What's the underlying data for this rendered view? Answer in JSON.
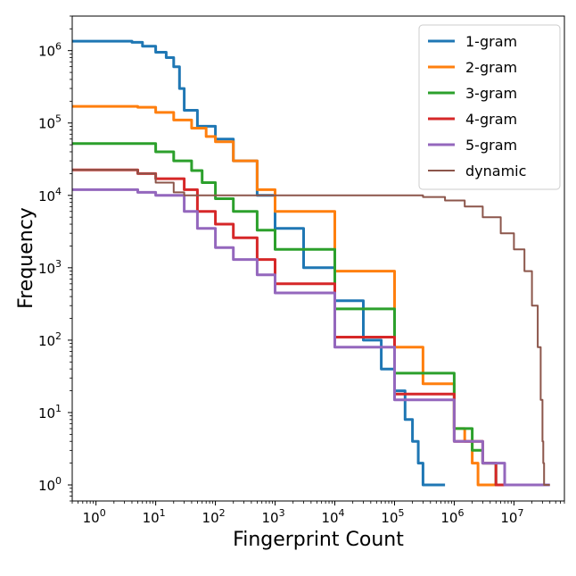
{
  "chart_data": {
    "type": "line",
    "xscale": "log",
    "yscale": "log",
    "xlabel": "Fingerprint Count",
    "ylabel": "Frequency",
    "xlim": [
      0.4,
      70000000
    ],
    "ylim": [
      0.6,
      3000000
    ],
    "grid": false,
    "legend_position": "top-right",
    "x_ticks": [
      {
        "value": 1,
        "base": "10",
        "exp": "0"
      },
      {
        "value": 10,
        "base": "10",
        "exp": "1"
      },
      {
        "value": 100,
        "base": "10",
        "exp": "2"
      },
      {
        "value": 1000,
        "base": "10",
        "exp": "3"
      },
      {
        "value": 10000,
        "base": "10",
        "exp": "4"
      },
      {
        "value": 100000,
        "base": "10",
        "exp": "5"
      },
      {
        "value": 1000000,
        "base": "10",
        "exp": "6"
      },
      {
        "value": 10000000,
        "base": "10",
        "exp": "7"
      }
    ],
    "y_ticks": [
      {
        "value": 1,
        "base": "10",
        "exp": "0"
      },
      {
        "value": 10,
        "base": "10",
        "exp": "1"
      },
      {
        "value": 100,
        "base": "10",
        "exp": "2"
      },
      {
        "value": 1000,
        "base": "10",
        "exp": "3"
      },
      {
        "value": 10000,
        "base": "10",
        "exp": "4"
      },
      {
        "value": 100000,
        "base": "10",
        "exp": "5"
      },
      {
        "value": 1000000,
        "base": "10",
        "exp": "6"
      }
    ],
    "series": [
      {
        "name": "1-gram",
        "color": "#1f77b4",
        "width": 3,
        "points": [
          [
            0.4,
            1350000
          ],
          [
            1,
            1350000
          ],
          [
            3,
            1350000
          ],
          [
            4,
            1300000
          ],
          [
            6,
            1150000
          ],
          [
            10,
            950000
          ],
          [
            15,
            800000
          ],
          [
            20,
            600000
          ],
          [
            25,
            300000
          ],
          [
            30,
            150000
          ],
          [
            50,
            90000
          ],
          [
            100,
            60000
          ],
          [
            200,
            30000
          ],
          [
            500,
            10000
          ],
          [
            1000,
            3500
          ],
          [
            3000,
            1000
          ],
          [
            10000,
            350
          ],
          [
            30000,
            100
          ],
          [
            60000,
            40
          ],
          [
            100000,
            20
          ],
          [
            150000,
            8
          ],
          [
            200000,
            4
          ],
          [
            250000,
            2
          ],
          [
            300000,
            1
          ],
          [
            700000,
            1
          ]
        ]
      },
      {
        "name": "2-gram",
        "color": "#ff7f0e",
        "width": 3,
        "points": [
          [
            0.4,
            170000
          ],
          [
            1,
            170000
          ],
          [
            5,
            165000
          ],
          [
            10,
            140000
          ],
          [
            20,
            110000
          ],
          [
            40,
            85000
          ],
          [
            70,
            65000
          ],
          [
            100,
            55000
          ],
          [
            200,
            30000
          ],
          [
            500,
            12000
          ],
          [
            1000,
            6000
          ],
          [
            10000,
            900
          ],
          [
            100000,
            80
          ],
          [
            300000,
            25
          ],
          [
            1000000,
            6
          ],
          [
            1500000,
            4
          ],
          [
            2000000,
            2
          ],
          [
            2500000,
            1
          ],
          [
            4000000,
            1
          ],
          [
            5500000,
            1
          ]
        ]
      },
      {
        "name": "3-gram",
        "color": "#2ca02c",
        "width": 3,
        "points": [
          [
            0.4,
            52000
          ],
          [
            1,
            52000
          ],
          [
            5,
            52000
          ],
          [
            10,
            40000
          ],
          [
            20,
            30000
          ],
          [
            40,
            22000
          ],
          [
            60,
            15000
          ],
          [
            100,
            9000
          ],
          [
            200,
            6000
          ],
          [
            500,
            3300
          ],
          [
            1000,
            1800
          ],
          [
            10000,
            270
          ],
          [
            100000,
            35
          ],
          [
            1000000,
            6
          ],
          [
            2000000,
            3
          ],
          [
            3000000,
            2
          ],
          [
            5000000,
            1
          ],
          [
            6000000,
            1
          ]
        ]
      },
      {
        "name": "4-gram",
        "color": "#d62728",
        "width": 3,
        "points": [
          [
            0.4,
            22500
          ],
          [
            1,
            22500
          ],
          [
            3,
            22500
          ],
          [
            5,
            20000
          ],
          [
            10,
            17000
          ],
          [
            30,
            12000
          ],
          [
            50,
            6000
          ],
          [
            100,
            4000
          ],
          [
            200,
            2600
          ],
          [
            500,
            1300
          ],
          [
            1000,
            600
          ],
          [
            10000,
            110
          ],
          [
            100000,
            18
          ],
          [
            1000000,
            4
          ],
          [
            3000000,
            2
          ],
          [
            5000000,
            1
          ],
          [
            7000000,
            1
          ]
        ]
      },
      {
        "name": "5-gram",
        "color": "#9467bd",
        "width": 3,
        "points": [
          [
            0.4,
            12000
          ],
          [
            1,
            12000
          ],
          [
            5,
            11000
          ],
          [
            10,
            10000
          ],
          [
            30,
            6000
          ],
          [
            50,
            3500
          ],
          [
            100,
            1900
          ],
          [
            200,
            1300
          ],
          [
            500,
            800
          ],
          [
            1000,
            450
          ],
          [
            10000,
            80
          ],
          [
            100000,
            15
          ],
          [
            1000000,
            4
          ],
          [
            3000000,
            2
          ],
          [
            6000000,
            2
          ],
          [
            7000000,
            1
          ],
          [
            40000000,
            1
          ]
        ]
      },
      {
        "name": "dynamic",
        "color": "#8c564b",
        "width": 2,
        "points": [
          [
            0.4,
            22500
          ],
          [
            1,
            22500
          ],
          [
            5,
            20000
          ],
          [
            10,
            15000
          ],
          [
            20,
            11000
          ],
          [
            30,
            10000
          ],
          [
            100,
            10000
          ],
          [
            1000,
            10000
          ],
          [
            100000,
            10000
          ],
          [
            300000,
            9500
          ],
          [
            700000,
            8500
          ],
          [
            1500000,
            7000
          ],
          [
            3000000,
            5000
          ],
          [
            6000000,
            3000
          ],
          [
            10000000,
            1800
          ],
          [
            15000000,
            900
          ],
          [
            20000000,
            300
          ],
          [
            25000000,
            80
          ],
          [
            28000000,
            15
          ],
          [
            30000000,
            4
          ],
          [
            31000000,
            2
          ],
          [
            32000000,
            1
          ],
          [
            40000000,
            1
          ]
        ]
      }
    ]
  }
}
